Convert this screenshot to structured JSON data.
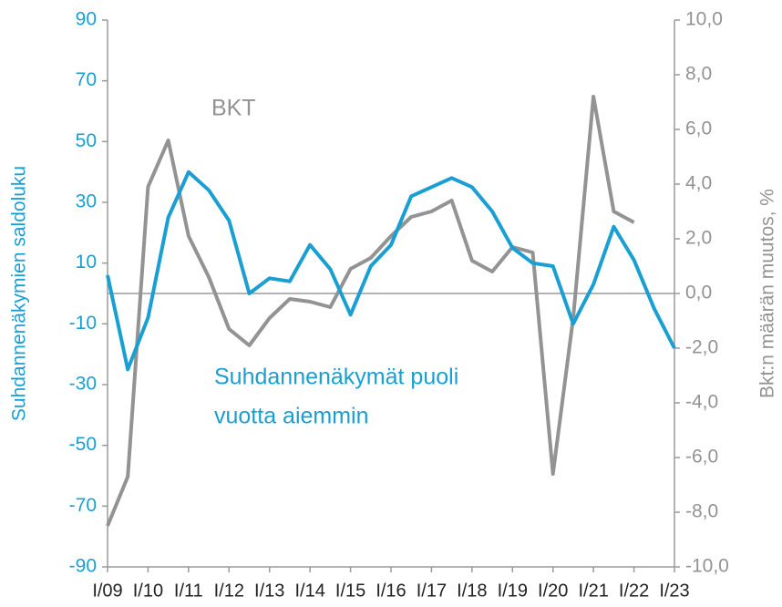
{
  "chart_data": {
    "type": "line",
    "categories": [
      "I/09",
      null,
      "I/10",
      null,
      "I/11",
      null,
      "I/12",
      null,
      "I/13",
      null,
      "I/14",
      null,
      "I/15",
      null,
      "I/16",
      null,
      "I/17",
      null,
      "I/18",
      null,
      "I/19",
      null,
      "I/20",
      null,
      "I/21",
      null,
      "I/22",
      null,
      "I/23"
    ],
    "series": [
      {
        "color": "#1a9fd3",
        "axis": "y",
        "values": [
          6,
          -25,
          -8,
          25,
          40,
          34,
          24,
          0,
          5,
          4,
          16,
          8,
          -7,
          9,
          16,
          32,
          35,
          38,
          35,
          27,
          15,
          10,
          9,
          -10,
          3,
          22,
          11,
          -5,
          -18
        ]
      },
      {
        "color": "#939393",
        "axis": "y2",
        "values": [
          -8.5,
          -6.7,
          3.9,
          5.6,
          2.1,
          0.6,
          -1.3,
          -1.9,
          -0.9,
          -0.2,
          -0.3,
          -0.5,
          0.9,
          1.3,
          2.1,
          2.8,
          3.0,
          3.4,
          1.2,
          0.8,
          1.7,
          1.5,
          -6.6,
          -0.9,
          7.2,
          3.0,
          2.6,
          null,
          null
        ]
      }
    ],
    "ylabel": "Suhdannenäkymien saldoluku",
    "y2label": "Bkt:n määrän muutos, %",
    "ylim": [
      -90,
      90
    ],
    "yticks": [
      -90,
      -70,
      -50,
      -30,
      -10,
      10,
      30,
      50,
      70,
      90
    ],
    "y2lim": [
      -10,
      10
    ],
    "y2ticks": [
      {
        "value": -10,
        "label": "-10,0"
      },
      {
        "value": -8,
        "label": "-8,0"
      },
      {
        "value": -6,
        "label": "-6,0"
      },
      {
        "value": -4,
        "label": "-4,0"
      },
      {
        "value": -2,
        "label": "-2,0"
      },
      {
        "value": 0,
        "label": "0,0"
      },
      {
        "value": 2,
        "label": "2,0"
      },
      {
        "value": 4,
        "label": "4,0"
      },
      {
        "value": 6,
        "label": "6,0"
      },
      {
        "value": 8,
        "label": "8,0"
      },
      {
        "value": 10,
        "label": "10,0"
      }
    ],
    "annotations": [
      {
        "lines": [
          "BKT"
        ],
        "color": "#939393"
      },
      {
        "lines": [
          "Suhdannenäkymät puoli",
          "vuotta aiemmin"
        ],
        "color": "#1a9fd3"
      }
    ]
  }
}
